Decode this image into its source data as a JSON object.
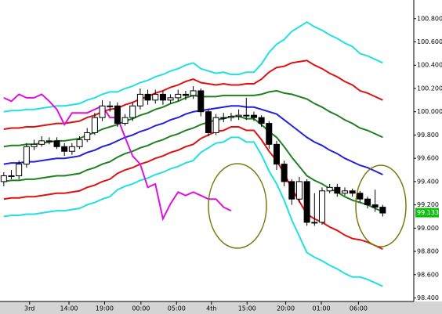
{
  "chart_data": {
    "type": "candlestick",
    "x": [
      0,
      1,
      2,
      3,
      4,
      5,
      6,
      7,
      8,
      9,
      10,
      11,
      12,
      13,
      14,
      15,
      16,
      17,
      18,
      19,
      20,
      21,
      22,
      23,
      24,
      25,
      26,
      27,
      28,
      29,
      30,
      31,
      32,
      33,
      34,
      35,
      36,
      37,
      38,
      39,
      40,
      41,
      42,
      43,
      44,
      45,
      46,
      47,
      48,
      49,
      50
    ],
    "open": [
      99.4,
      99.45,
      99.45,
      99.55,
      99.7,
      99.72,
      99.75,
      99.75,
      99.7,
      99.66,
      99.7,
      99.76,
      99.82,
      99.95,
      100.05,
      100.05,
      99.9,
      99.95,
      100.05,
      100.15,
      100.1,
      100.15,
      100.1,
      100.12,
      100.15,
      100.14,
      100.18,
      100.0,
      99.82,
      99.95,
      99.95,
      99.96,
      99.97,
      99.97,
      99.95,
      99.9,
      99.72,
      99.55,
      99.4,
      99.25,
      99.4,
      99.05,
      99.05,
      99.32,
      99.35,
      99.3,
      99.32,
      99.3,
      99.25,
      99.2,
      99.18
    ],
    "high": [
      99.48,
      99.5,
      99.58,
      99.73,
      99.76,
      99.79,
      99.78,
      99.78,
      99.73,
      99.73,
      99.79,
      99.86,
      99.99,
      100.1,
      100.09,
      100.08,
      99.98,
      100.08,
      100.2,
      100.19,
      100.19,
      100.18,
      100.15,
      100.19,
      100.18,
      100.22,
      100.2,
      100.02,
      99.98,
      99.99,
      99.99,
      100.02,
      100.12,
      100.0,
      99.97,
      99.92,
      99.75,
      99.58,
      99.42,
      99.44,
      99.42,
      99.3,
      99.35,
      99.38,
      99.38,
      99.35,
      99.34,
      99.32,
      99.27,
      99.33,
      99.2
    ],
    "low": [
      99.36,
      99.42,
      99.42,
      99.52,
      99.67,
      99.7,
      99.72,
      99.68,
      99.62,
      99.63,
      99.68,
      99.74,
      99.8,
      99.92,
      100.0,
      99.87,
      99.88,
      99.92,
      100.02,
      100.06,
      100.07,
      100.06,
      100.07,
      100.09,
      100.1,
      100.11,
      99.96,
      99.79,
      99.8,
      99.91,
      99.92,
      99.93,
      99.93,
      99.92,
      99.87,
      99.68,
      99.5,
      99.36,
      99.2,
      99.22,
      99.02,
      99.02,
      99.03,
      99.3,
      99.27,
      99.28,
      99.27,
      99.22,
      99.17,
      99.14,
      99.1
    ],
    "close": [
      99.45,
      99.45,
      99.55,
      99.7,
      99.72,
      99.75,
      99.75,
      99.7,
      99.66,
      99.7,
      99.76,
      99.82,
      99.95,
      100.05,
      100.05,
      99.9,
      99.95,
      100.05,
      100.15,
      100.1,
      100.15,
      100.1,
      100.12,
      100.15,
      100.14,
      100.18,
      100.0,
      99.82,
      99.95,
      99.95,
      99.96,
      99.97,
      99.97,
      99.95,
      99.9,
      99.72,
      99.55,
      99.4,
      99.25,
      99.4,
      99.05,
      99.05,
      99.32,
      99.35,
      99.3,
      99.32,
      99.3,
      99.25,
      99.2,
      99.18,
      99.13
    ],
    "series": [
      {
        "color": "#2020e0",
        "values": [
          99.55,
          99.56,
          99.56,
          99.57,
          99.57,
          99.58,
          99.59,
          99.6,
          99.6,
          99.61,
          99.62,
          99.65,
          99.67,
          99.7,
          99.72,
          99.75,
          99.78,
          99.8,
          99.83,
          99.85,
          99.88,
          99.9,
          99.93,
          99.95,
          99.98,
          100.0,
          100.01,
          100.02,
          100.03,
          100.04,
          100.05,
          100.05,
          100.04,
          100.04,
          100.02,
          100.0,
          99.98,
          99.93,
          99.88,
          99.83,
          99.78,
          99.74,
          99.71,
          99.67,
          99.64,
          99.6,
          99.57,
          99.54,
          99.52,
          99.49,
          99.46
        ]
      },
      {
        "color": "#208020",
        "values": [
          99.7,
          99.71,
          99.71,
          99.72,
          99.72,
          99.73,
          99.74,
          99.75,
          99.75,
          99.76,
          99.77,
          99.8,
          99.82,
          99.85,
          99.87,
          99.89,
          99.92,
          99.94,
          99.97,
          99.99,
          100.02,
          100.04,
          100.07,
          100.09,
          100.12,
          100.14,
          100.13,
          100.13,
          100.13,
          100.14,
          100.14,
          100.14,
          100.14,
          100.14,
          100.15,
          100.17,
          100.18,
          100.16,
          100.15,
          100.13,
          100.11,
          100.07,
          100.04,
          100.0,
          99.97,
          99.93,
          99.9,
          99.86,
          99.84,
          99.81,
          99.78
        ]
      },
      {
        "color": "#208020",
        "values": [
          99.4,
          99.41,
          99.41,
          99.42,
          99.42,
          99.43,
          99.44,
          99.45,
          99.45,
          99.46,
          99.47,
          99.5,
          99.52,
          99.55,
          99.57,
          99.61,
          99.64,
          99.66,
          99.69,
          99.71,
          99.74,
          99.76,
          99.79,
          99.81,
          99.84,
          99.86,
          99.89,
          99.91,
          99.93,
          99.94,
          99.96,
          99.96,
          99.94,
          99.94,
          99.89,
          99.83,
          99.78,
          99.7,
          99.61,
          99.53,
          99.45,
          99.41,
          99.38,
          99.34,
          99.31,
          99.27,
          99.24,
          99.22,
          99.2,
          99.17,
          99.14
        ]
      },
      {
        "color": "#e01010",
        "values": [
          99.85,
          99.86,
          99.86,
          99.87,
          99.87,
          99.88,
          99.89,
          99.9,
          99.9,
          99.91,
          99.92,
          99.95,
          99.97,
          100.0,
          100.02,
          100.03,
          100.06,
          100.08,
          100.11,
          100.13,
          100.16,
          100.18,
          100.21,
          100.23,
          100.26,
          100.28,
          100.25,
          100.24,
          100.23,
          100.24,
          100.23,
          100.23,
          100.24,
          100.24,
          100.28,
          100.34,
          100.38,
          100.39,
          100.42,
          100.43,
          100.44,
          100.4,
          100.37,
          100.33,
          100.3,
          100.26,
          100.23,
          100.18,
          100.16,
          100.13,
          100.1
        ]
      },
      {
        "color": "#e01010",
        "values": [
          99.25,
          99.26,
          99.26,
          99.27,
          99.27,
          99.28,
          99.29,
          99.3,
          99.3,
          99.31,
          99.32,
          99.35,
          99.37,
          99.4,
          99.42,
          99.47,
          99.5,
          99.52,
          99.55,
          99.57,
          99.6,
          99.62,
          99.65,
          99.67,
          99.7,
          99.72,
          99.77,
          99.8,
          99.83,
          99.84,
          99.87,
          99.87,
          99.84,
          99.84,
          99.76,
          99.66,
          99.58,
          99.47,
          99.34,
          99.23,
          99.12,
          99.08,
          99.05,
          99.01,
          98.98,
          98.94,
          98.91,
          98.9,
          98.88,
          98.85,
          98.82
        ]
      },
      {
        "color": "#20e0e0",
        "values": [
          100.0,
          100.01,
          100.01,
          100.02,
          100.02,
          100.03,
          100.04,
          100.05,
          100.05,
          100.06,
          100.07,
          100.1,
          100.12,
          100.15,
          100.17,
          100.17,
          100.2,
          100.22,
          100.25,
          100.27,
          100.3,
          100.32,
          100.35,
          100.37,
          100.4,
          100.42,
          100.37,
          100.35,
          100.33,
          100.34,
          100.32,
          100.32,
          100.34,
          100.34,
          100.41,
          100.51,
          100.58,
          100.62,
          100.69,
          100.73,
          100.77,
          100.73,
          100.7,
          100.66,
          100.63,
          100.59,
          100.56,
          100.5,
          100.48,
          100.45,
          100.42
        ]
      },
      {
        "color": "#20e0e0",
        "values": [
          99.1,
          99.11,
          99.11,
          99.12,
          99.12,
          99.13,
          99.14,
          99.15,
          99.15,
          99.16,
          99.17,
          99.2,
          99.22,
          99.25,
          99.27,
          99.33,
          99.36,
          99.38,
          99.41,
          99.43,
          99.46,
          99.48,
          99.51,
          99.53,
          99.56,
          99.58,
          99.65,
          99.69,
          99.73,
          99.74,
          99.78,
          99.78,
          99.74,
          99.74,
          99.63,
          99.49,
          99.38,
          99.24,
          99.07,
          98.93,
          98.79,
          98.75,
          98.72,
          98.68,
          98.65,
          98.61,
          98.58,
          98.58,
          98.56,
          98.53,
          98.5
        ]
      },
      {
        "color": "#e010e0",
        "values": [
          100.12,
          100.09,
          100.15,
          100.12,
          100.12,
          100.15,
          100.09,
          100.02,
          99.89,
          99.99,
          99.99,
          99.99,
          100.02,
          100.05,
          99.95,
          99.95,
          99.78,
          99.62,
          99.55,
          99.35,
          99.38,
          99.08,
          99.21,
          99.31,
          99.28,
          99.31,
          99.28,
          99.25,
          99.25,
          99.18,
          99.15,
          null,
          null,
          null,
          null,
          null,
          null,
          null,
          null,
          null,
          null,
          null,
          null,
          null,
          null,
          null,
          null,
          null,
          null,
          null,
          null
        ]
      }
    ],
    "last_price": 99.133,
    "last_price_color": "#10c010",
    "up_color": "#ffffff",
    "down_color": "#000000",
    "xlim": [
      -0.5,
      54.1
    ],
    "ylim": [
      98.37,
      100.96
    ],
    "xticks": [
      {
        "value": 3.4,
        "label": "3rd"
      },
      {
        "value": 8.6,
        "label": "14:00"
      },
      {
        "value": 13.3,
        "label": "19:00"
      },
      {
        "value": 18.1,
        "label": "00:00"
      },
      {
        "value": 22.8,
        "label": "05:00"
      },
      {
        "value": 27.4,
        "label": "4th"
      },
      {
        "value": 32.1,
        "label": "15:00"
      },
      {
        "value": 37.2,
        "label": "20:00"
      },
      {
        "value": 41.9,
        "label": "01:00"
      },
      {
        "value": 46.8,
        "label": "06:00"
      }
    ],
    "yticks": [
      {
        "value": 98.4,
        "label": "98.400"
      },
      {
        "value": 98.6,
        "label": "98.600"
      },
      {
        "value": 98.8,
        "label": "98.800"
      },
      {
        "value": 99.0,
        "label": "99.000"
      },
      {
        "value": 99.2,
        "label": "99.200"
      },
      {
        "value": 99.4,
        "label": "99.400"
      },
      {
        "value": 99.6,
        "label": "99.600"
      },
      {
        "value": 99.8,
        "label": "99.800"
      },
      {
        "value": 100.0,
        "label": "100.000"
      },
      {
        "value": 100.2,
        "label": "100.200"
      },
      {
        "value": 100.4,
        "label": "100.400"
      },
      {
        "value": 100.6,
        "label": "100.600"
      },
      {
        "value": 100.8,
        "label": "100.800"
      }
    ]
  }
}
